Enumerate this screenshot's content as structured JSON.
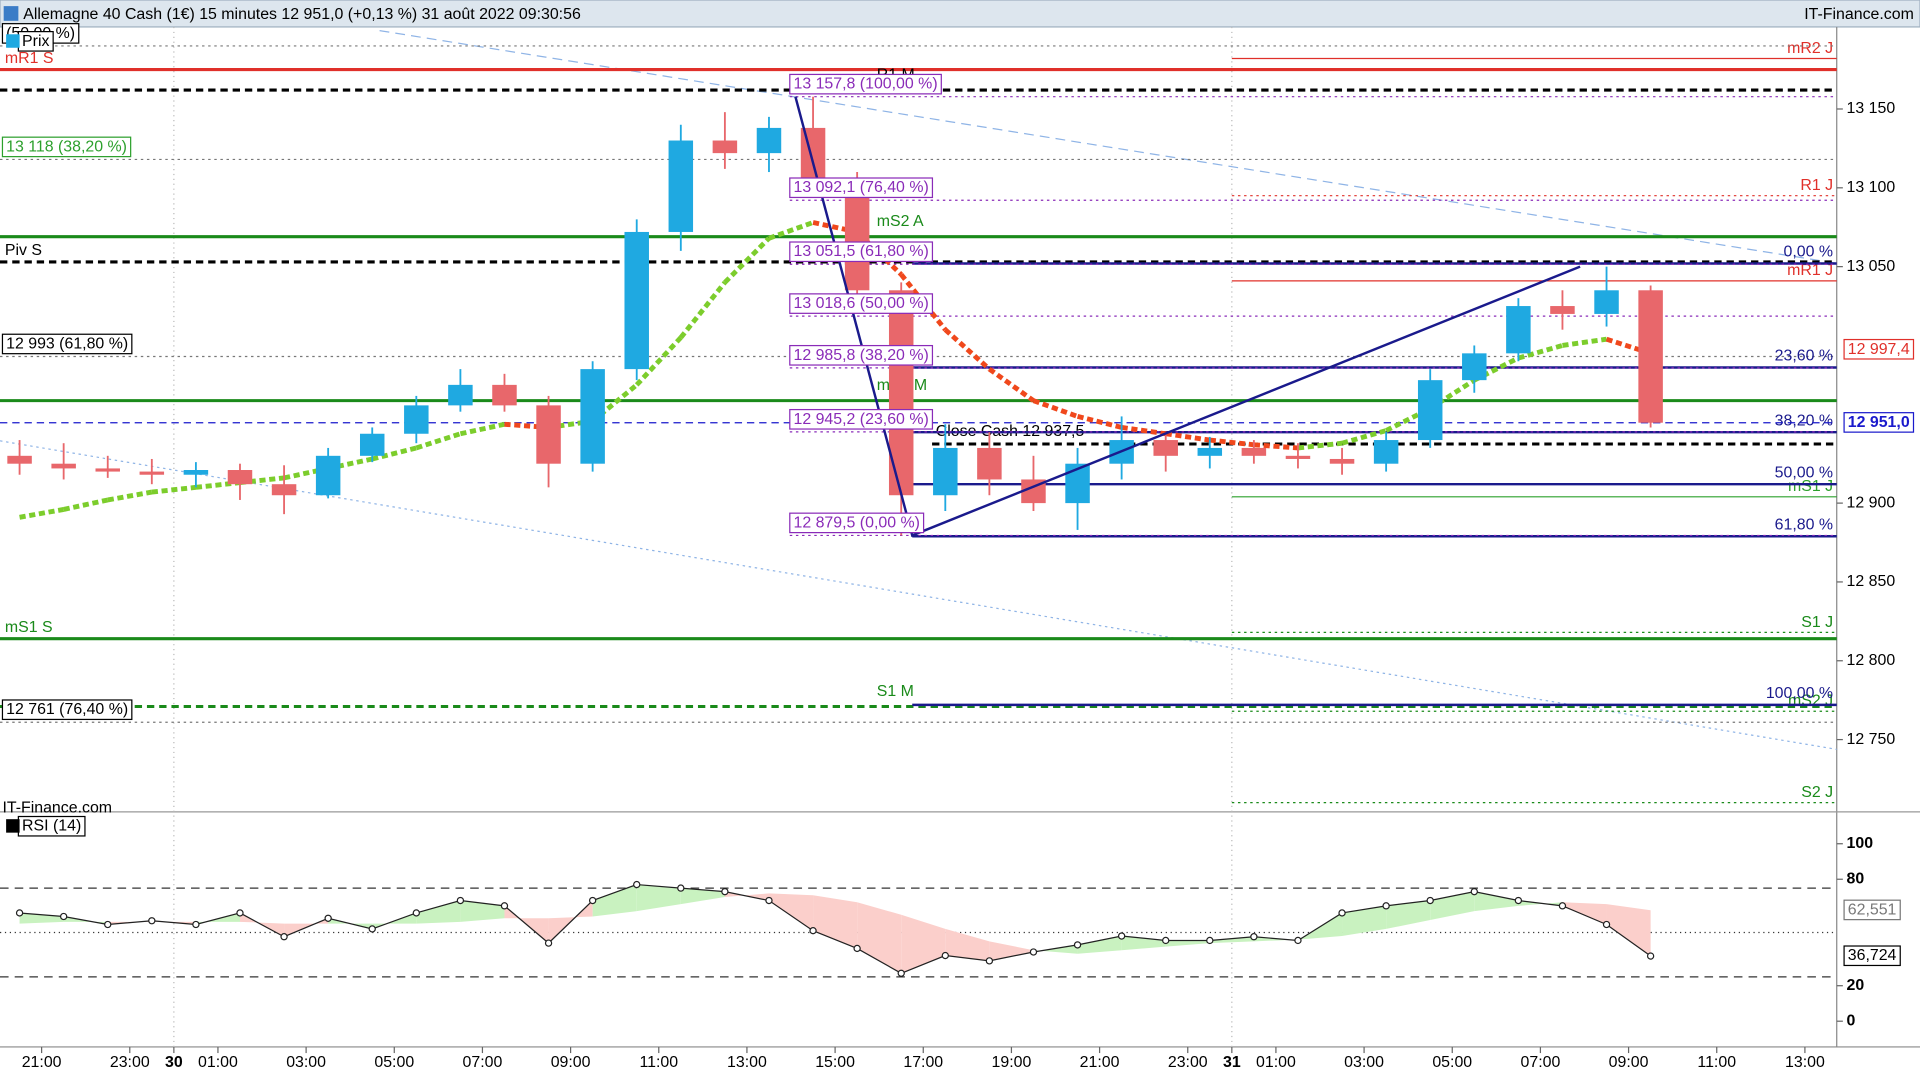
{
  "header": {
    "title": "Allemagne 40 Cash (1€) 15 minutes 12 951,0 (+0,13 %) 31 août 2022 09:30:56",
    "site": "IT-Finance.com"
  },
  "chart_data": [
    {
      "type": "candlestick",
      "legend": "Prix",
      "watermark": "IT-Finance.com",
      "x": [
        -0.5,
        0.5,
        1.5,
        2.5,
        3.5,
        4.5,
        5.5,
        6.5,
        7.5,
        8.5,
        9.5,
        10.5,
        11.5,
        12.5,
        13.5,
        14.5,
        15.5,
        16.5,
        17.5,
        18.5,
        19.5,
        20.5,
        21.5,
        22.5,
        23.5,
        24.5,
        25.5,
        26.5,
        27.5,
        28.5,
        29.5,
        30.5,
        31.5,
        32.5,
        33.5,
        34.5,
        35.5,
        36.5
      ],
      "open": [
        12930,
        12925,
        12922,
        12920,
        12918,
        12921,
        12912,
        12905,
        12930,
        12944,
        12962,
        12975,
        12962,
        12925,
        12985,
        13072,
        13130,
        13122,
        13138,
        13105,
        13035,
        12905,
        12935,
        12915,
        12900,
        12925,
        12940,
        12930,
        12935,
        12930,
        12928,
        12925,
        12940,
        12978,
        12995,
        13025,
        13020,
        13035
      ],
      "high": [
        12940,
        12938,
        12930,
        12928,
        12926,
        12925,
        12924,
        12935,
        12948,
        12968,
        12985,
        12982,
        12968,
        12990,
        13080,
        13140,
        13148,
        13145,
        13157.8,
        13110,
        13040,
        12950,
        12945,
        12930,
        12935,
        12955,
        12945,
        12942,
        12940,
        12938,
        12935,
        12945,
        12985,
        13000,
        13030,
        13035,
        13050,
        13038
      ],
      "low": [
        12918,
        12915,
        12916,
        12912,
        12910,
        12902,
        12893,
        12903,
        12926,
        12938,
        12958,
        12958,
        12910,
        12920,
        12978,
        13060,
        13112,
        13110,
        13100,
        13025,
        12879.5,
        12895,
        12905,
        12895,
        12883,
        12915,
        12920,
        12922,
        12925,
        12922,
        12918,
        12920,
        12935,
        12970,
        12990,
        13010,
        13012,
        12948
      ],
      "close": [
        12925,
        12922,
        12920,
        12918,
        12921,
        12912,
        12905,
        12930,
        12944,
        12962,
        12975,
        12962,
        12925,
        12985,
        13072,
        13130,
        13122,
        13138,
        13105,
        13035,
        12905,
        12935,
        12915,
        12900,
        12925,
        12940,
        12930,
        12935,
        12930,
        12928,
        12925,
        12940,
        12978,
        12995,
        13025,
        13020,
        13035,
        12951
      ],
      "up_color": "#1fa9e1",
      "down_color": "#e8676b",
      "moving_average": {
        "values": [
          12891,
          12896,
          12902,
          12907,
          12910,
          12913,
          12916,
          12922,
          12928,
          12935,
          12944,
          12950,
          12948,
          12952,
          12975,
          13005,
          13040,
          13068,
          13078,
          13072,
          13045,
          13010,
          12985,
          12965,
          12955,
          12948,
          12944,
          12940,
          12937,
          12935,
          12938,
          12946,
          12960,
          12978,
          12992,
          13000,
          13004,
          12995
        ],
        "up_color": "#7ccd2c",
        "down_color": "#f0481c"
      },
      "xlim": [
        -0.944,
        40.722
      ],
      "xticks": [
        {
          "value": 0,
          "label": "21:00"
        },
        {
          "value": 2,
          "label": "23:00"
        },
        {
          "value": 3,
          "label": "30"
        },
        {
          "value": 4,
          "label": "01:00"
        },
        {
          "value": 6,
          "label": "03:00"
        },
        {
          "value": 8,
          "label": "05:00"
        },
        {
          "value": 10,
          "label": "07:00"
        },
        {
          "value": 12,
          "label": "09:00"
        },
        {
          "value": 14,
          "label": "11:00"
        },
        {
          "value": 16,
          "label": "13:00"
        },
        {
          "value": 18,
          "label": "15:00"
        },
        {
          "value": 20,
          "label": "17:00"
        },
        {
          "value": 22,
          "label": "19:00"
        },
        {
          "value": 24,
          "label": "21:00"
        },
        {
          "value": 26,
          "label": "23:00"
        },
        {
          "value": 27,
          "label": "31"
        },
        {
          "value": 28,
          "label": "01:00"
        },
        {
          "value": 30,
          "label": "03:00"
        },
        {
          "value": 32,
          "label": "05:00"
        },
        {
          "value": 34,
          "label": "07:00"
        },
        {
          "value": 36,
          "label": "09:00"
        },
        {
          "value": 38,
          "label": "11:00"
        },
        {
          "value": 40,
          "label": "13:00"
        }
      ],
      "ylim": [
        12706.5,
        13203.6
      ],
      "yticks": [
        {
          "value": 12750,
          "label": "12 750"
        },
        {
          "value": 12800,
          "label": "12 800"
        },
        {
          "value": 12850,
          "label": "12 850"
        },
        {
          "value": 12900,
          "label": "12 900"
        },
        {
          "value": 13050,
          "label": "13 050"
        },
        {
          "value": 13100,
          "label": "13 100"
        },
        {
          "value": 13150,
          "label": "13 150"
        }
      ],
      "levels": [
        {
          "label": "mR2 J",
          "value": 13182,
          "color": "#e0302a",
          "style": "solid",
          "weight": "light",
          "start": 27,
          "label_at": "right"
        },
        {
          "label": "mR1 S",
          "value": 13175,
          "color": "#e0302a",
          "style": "solid",
          "weight": "heavy",
          "label_at": "left"
        },
        {
          "label": "R1 M",
          "value": 13162,
          "color": "#000000",
          "style": "dashed",
          "weight": "heavy",
          "label_at": "chart"
        },
        {
          "label": "R1 J",
          "value": 13095,
          "color": "#e0302a",
          "style": "dotted",
          "weight": "light",
          "start": 27,
          "label_at": "right"
        },
        {
          "label": "mS2 A",
          "value": 13069,
          "color": "#1a8a1a",
          "style": "solid",
          "weight": "heavy",
          "label_at": "chart"
        },
        {
          "label": "Piv S",
          "value": 13053,
          "color": "#000000",
          "style": "dashed",
          "weight": "heavy",
          "label_at": "left"
        },
        {
          "label": "mR1 J",
          "value": 13041,
          "color": "#e0302a",
          "style": "solid",
          "weight": "light",
          "start": 27,
          "label_at": "right"
        },
        {
          "label": "mS1 M",
          "value": 12965,
          "color": "#1a8a1a",
          "style": "solid",
          "weight": "heavy",
          "label_at": "chart"
        },
        {
          "label": "Close Cash 12 937,5",
          "value": 12937.5,
          "color": "#000000",
          "style": "dashed",
          "weight": "heavy",
          "start": 20.2,
          "label_at": "start"
        },
        {
          "label": "mS1 J",
          "value": 12904,
          "color": "#2ca02c",
          "style": "solid",
          "weight": "light",
          "start": 27,
          "label_at": "right"
        },
        {
          "label": "S1 J",
          "value": 12818,
          "color": "#1a8a1a",
          "style": "dotted",
          "weight": "light",
          "start": 27,
          "label_at": "right"
        },
        {
          "label": "mS1 S",
          "value": 12814,
          "color": "#1a8a1a",
          "style": "solid",
          "weight": "heavy",
          "label_at": "left"
        },
        {
          "label": "S1 M",
          "value": 12771,
          "color": "#1a8a1a",
          "style": "dashed",
          "weight": "heavy",
          "label_at": "chart"
        },
        {
          "label": "mS2 J",
          "value": 12768,
          "color": "#1a8a1a",
          "style": "dotted",
          "weight": "light",
          "start": 27,
          "label_at": "right"
        },
        {
          "label": "S2 J",
          "value": 12710,
          "color": "#1a8a1a",
          "style": "dotted",
          "weight": "light",
          "start": 27,
          "label_at": "right"
        }
      ],
      "fib_left": [
        {
          "value": 13157.8,
          "label": "13 157,8 (100,00 %)"
        },
        {
          "value": 13092.1,
          "label": "13 092,1 (76,40 %)"
        },
        {
          "value": 13051.5,
          "label": "13 051,5 (61,80 %)"
        },
        {
          "value": 13018.6,
          "label": "13 018,6 (50,00 %)"
        },
        {
          "value": 12985.8,
          "label": "12 985,8 (38,20 %)"
        },
        {
          "value": 12945.2,
          "label": "12 945,2 (23,60 %)"
        },
        {
          "value": 12879.5,
          "label": "12 879,5 (0,00 %)"
        }
      ],
      "fib_left_color": "#8a2bb8",
      "fib_right": {
        "start": 19.75,
        "color": "#1a1a8c",
        "levels": [
          {
            "value": 13052,
            "label": "0,00 %"
          },
          {
            "value": 12986,
            "label": "23,60 %"
          },
          {
            "value": 12945,
            "label": "38,20 %"
          },
          {
            "value": 12912,
            "label": "50,00 %"
          },
          {
            "value": 12879,
            "label": "61,80 %"
          },
          {
            "value": 12772,
            "label": "100,00 %"
          }
        ]
      },
      "extra_left": [
        {
          "value": 13190,
          "label": "(50,00 %)",
          "color": "#000000"
        },
        {
          "value": 13118,
          "label": "13 118 (38,20 %)",
          "color": "#2ca02c"
        },
        {
          "value": 12993,
          "label": "12 993 (61,80 %)",
          "color": "#000000"
        },
        {
          "value": 12761,
          "label": "12 761 (76,40 %)",
          "color": "#000000"
        }
      ],
      "trendline": {
        "x": [
          17.1,
          19.75,
          34.9
        ],
        "values": [
          13157.8,
          12879.5,
          13050
        ],
        "color": "#1a1a8c"
      },
      "price_labels": [
        {
          "value": 12997.4,
          "label": "12 997,4",
          "color": "#e0302a"
        },
        {
          "value": 12951,
          "label": "12 951,0",
          "color": "#1a1acc",
          "bold": true,
          "style": "dashed"
        }
      ]
    },
    {
      "type": "line",
      "legend": "RSI (14)",
      "x": [
        -0.5,
        0.5,
        1.5,
        2.5,
        3.5,
        4.5,
        5.5,
        6.5,
        7.5,
        8.5,
        9.5,
        10.5,
        11.5,
        12.5,
        13.5,
        14.5,
        15.5,
        16.5,
        17.5,
        18.5,
        19.5,
        20.5,
        21.5,
        22.5,
        23.5,
        24.5,
        25.5,
        26.5,
        27.5,
        28.5,
        29.5,
        30.5,
        31.5,
        32.5,
        33.5,
        34.5,
        35.5,
        36.5
      ],
      "values": [
        61,
        59,
        54.5,
        56.6,
        54.5,
        61,
        47.6,
        58,
        52,
        61,
        68,
        65,
        44,
        68,
        77,
        75,
        73,
        68,
        51,
        41,
        27,
        37,
        34,
        39,
        43,
        48,
        45.5,
        45.5,
        47.6,
        45.5,
        61,
        65,
        68,
        73,
        68,
        65,
        54.5,
        36.724
      ],
      "last_label": "36,724",
      "signal": {
        "values": [
          55,
          56,
          56,
          56,
          56,
          56,
          55,
          55,
          55,
          55,
          56,
          58,
          58,
          59,
          62,
          66,
          70,
          72,
          71,
          67,
          60,
          52,
          45,
          40,
          38,
          40,
          42,
          44,
          45,
          46,
          48,
          52,
          57,
          62,
          65,
          67,
          66,
          62.551
        ],
        "last_label": "62,551"
      },
      "color": "#222222",
      "up_fill": "#c9f2c0",
      "down_fill": "#fbcfcb",
      "levels": [
        75,
        50,
        25
      ],
      "ylim": [
        -14.5,
        116.6
      ],
      "yticks": [
        0,
        20,
        80,
        100
      ]
    }
  ]
}
